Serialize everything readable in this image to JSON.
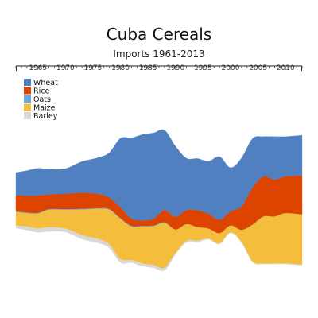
{
  "chart_data": {
    "type": "area",
    "title": "Cuba Cereals",
    "subtitle": "Imports 1961-2013",
    "xlabel": "",
    "ylabel": "",
    "x_range": [
      1961,
      2013
    ],
    "x_ticks": [
      1965,
      1970,
      1975,
      1980,
      1985,
      1990,
      1995,
      2000,
      2005,
      2010
    ],
    "legend_position": "top-left",
    "grid": false,
    "layout": "streamgraph",
    "x": [
      1961,
      1963,
      1965,
      1967,
      1970,
      1973,
      1976,
      1978,
      1980,
      1982,
      1984,
      1986,
      1988,
      1990,
      1992,
      1994,
      1996,
      1998,
      2000,
      2002,
      2004,
      2006,
      2008,
      2010,
      2013
    ],
    "series": [
      {
        "name": "Wheat",
        "color": "#5080c0",
        "values": [
          34,
          38,
          41,
          38,
          38,
          47,
          55,
          68,
          104,
          121,
          129,
          129,
          120,
          106,
          78,
          78,
          79,
          95,
          66,
          73,
          74,
          60,
          65,
          60,
          61
        ]
      },
      {
        "name": "Rice",
        "color": "#dd4400",
        "values": [
          24,
          25,
          26,
          22,
          23,
          24,
          21,
          17,
          16,
          11,
          8,
          10,
          18,
          19,
          21,
          25,
          22,
          20,
          21,
          35,
          55,
          60,
          55,
          55,
          58
        ]
      },
      {
        "name": "Oats",
        "color": "#6fa7d8",
        "values": [
          1,
          1,
          1,
          1,
          1,
          1,
          1,
          1,
          1,
          1,
          1,
          1,
          1,
          0,
          0,
          0,
          0,
          0,
          0,
          0,
          0,
          0,
          0,
          0,
          0
        ]
      },
      {
        "name": "Maize",
        "color": "#f4be3c",
        "values": [
          20,
          20,
          22,
          26,
          28,
          38,
          45,
          52,
          60,
          50,
          55,
          58,
          67,
          35,
          25,
          20,
          15,
          15,
          10,
          18,
          55,
          70,
          70,
          75,
          75
        ]
      },
      {
        "name": "Barley",
        "color": "#d8d8d8",
        "values": [
          4,
          5,
          6,
          6,
          5,
          6,
          6,
          5,
          5,
          4,
          4,
          4,
          4,
          2,
          2,
          2,
          1,
          1,
          1,
          1,
          1,
          1,
          1,
          1,
          1
        ]
      }
    ]
  }
}
